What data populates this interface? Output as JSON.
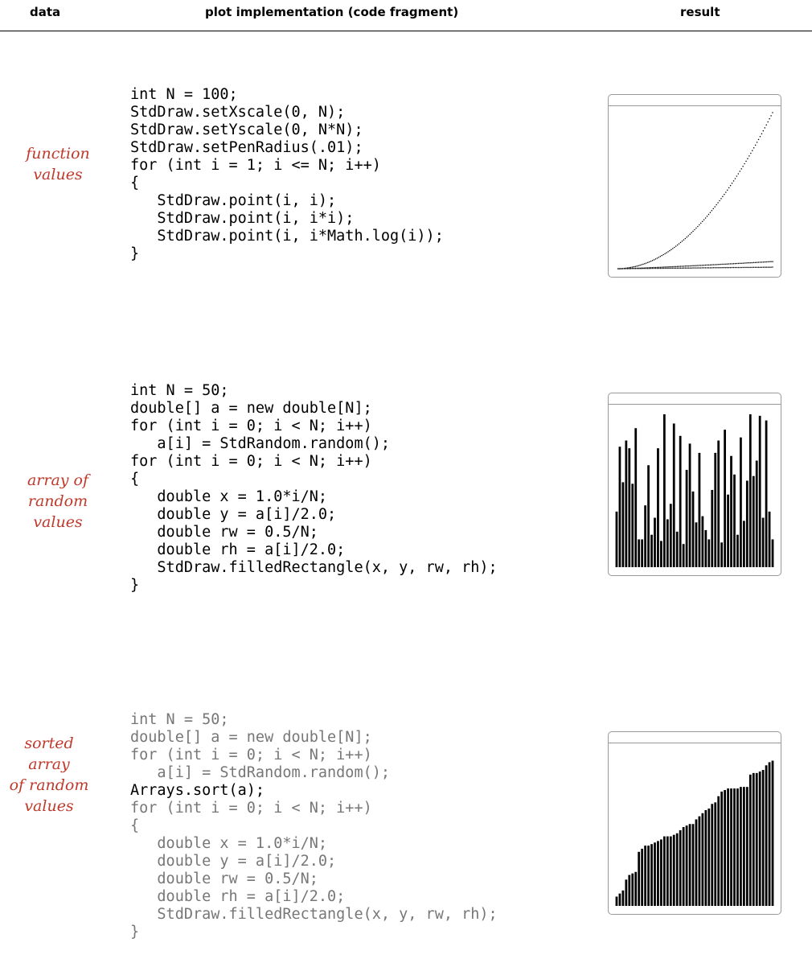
{
  "header": {
    "col_data": "data",
    "col_impl": "plot implementation (code fragment)",
    "col_result": "result"
  },
  "rows": [
    {
      "label": [
        "function",
        "values"
      ],
      "code": [
        "int N = 100;",
        "StdDraw.setXscale(0, N);",
        "StdDraw.setYscale(0, N*N);",
        "StdDraw.setPenRadius(.01);",
        "for (int i = 1; i <= N; i++)",
        "{",
        "   StdDraw.point(i, i);",
        "   StdDraw.point(i, i*i);",
        "   StdDraw.point(i, i*Math.log(i));",
        "}"
      ],
      "dim_lines": []
    },
    {
      "label": [
        "array of",
        "random",
        "values"
      ],
      "code": [
        "int N = 50;",
        "double[] a = new double[N];",
        "for (int i = 0; i < N; i++)",
        "   a[i] = StdRandom.random();",
        "for (int i = 0; i < N; i++)",
        "{",
        "   double x = 1.0*i/N;",
        "   double y = a[i]/2.0;",
        "   double rw = 0.5/N;",
        "   double rh = a[i]/2.0;",
        "   StdDraw.filledRectangle(x, y, rw, rh);",
        "}"
      ],
      "dim_lines": []
    },
    {
      "label": [
        "sorted array",
        "of random",
        "values"
      ],
      "code": [
        "int N = 50;",
        "double[] a = new double[N];",
        "for (int i = 0; i < N; i++)",
        "   a[i] = StdRandom.random();",
        "Arrays.sort(a);",
        "for (int i = 0; i < N; i++)",
        "{",
        "   double x = 1.0*i/N;",
        "   double y = a[i]/2.0;",
        "   double rw = 0.5/N;",
        "   double rh = a[i]/2.0;",
        "   StdDraw.filledRectangle(x, y, rw, rh);",
        "}"
      ],
      "dim_lines": [
        0,
        1,
        2,
        3,
        5,
        6,
        7,
        8,
        9,
        10,
        11,
        12
      ]
    }
  ],
  "chart_data": [
    {
      "type": "scatter",
      "title": "",
      "xlim": [
        0,
        100
      ],
      "ylim": [
        0,
        10000
      ],
      "series": [
        {
          "function": "i"
        },
        {
          "function": "i*i"
        },
        {
          "function": "i*log(i)"
        }
      ],
      "n": 100
    },
    {
      "type": "bar",
      "title": "",
      "ylim": [
        0,
        1
      ],
      "values": [
        0.36,
        0.78,
        0.55,
        0.82,
        0.77,
        0.54,
        0.9,
        0.18,
        0.18,
        0.4,
        0.66,
        0.21,
        0.32,
        0.77,
        0.17,
        0.99,
        0.31,
        0.41,
        0.93,
        0.23,
        0.85,
        0.15,
        0.63,
        0.8,
        0.49,
        0.29,
        0.74,
        0.33,
        0.24,
        0.18,
        0.5,
        0.74,
        0.82,
        0.16,
        0.89,
        0.47,
        0.72,
        0.6,
        0.21,
        0.84,
        0.3,
        0.56,
        0.99,
        0.59,
        0.69,
        0.98,
        0.32,
        0.95,
        0.36,
        0.18
      ]
    },
    {
      "type": "bar",
      "title": "",
      "ylim": [
        0,
        1
      ],
      "values": [
        0.06,
        0.08,
        0.1,
        0.17,
        0.2,
        0.21,
        0.22,
        0.35,
        0.37,
        0.39,
        0.39,
        0.4,
        0.41,
        0.42,
        0.43,
        0.45,
        0.45,
        0.45,
        0.46,
        0.47,
        0.49,
        0.51,
        0.52,
        0.53,
        0.53,
        0.56,
        0.58,
        0.6,
        0.62,
        0.63,
        0.66,
        0.67,
        0.71,
        0.74,
        0.75,
        0.76,
        0.76,
        0.76,
        0.76,
        0.77,
        0.77,
        0.77,
        0.85,
        0.86,
        0.86,
        0.87,
        0.88,
        0.91,
        0.93,
        0.94
      ]
    }
  ]
}
